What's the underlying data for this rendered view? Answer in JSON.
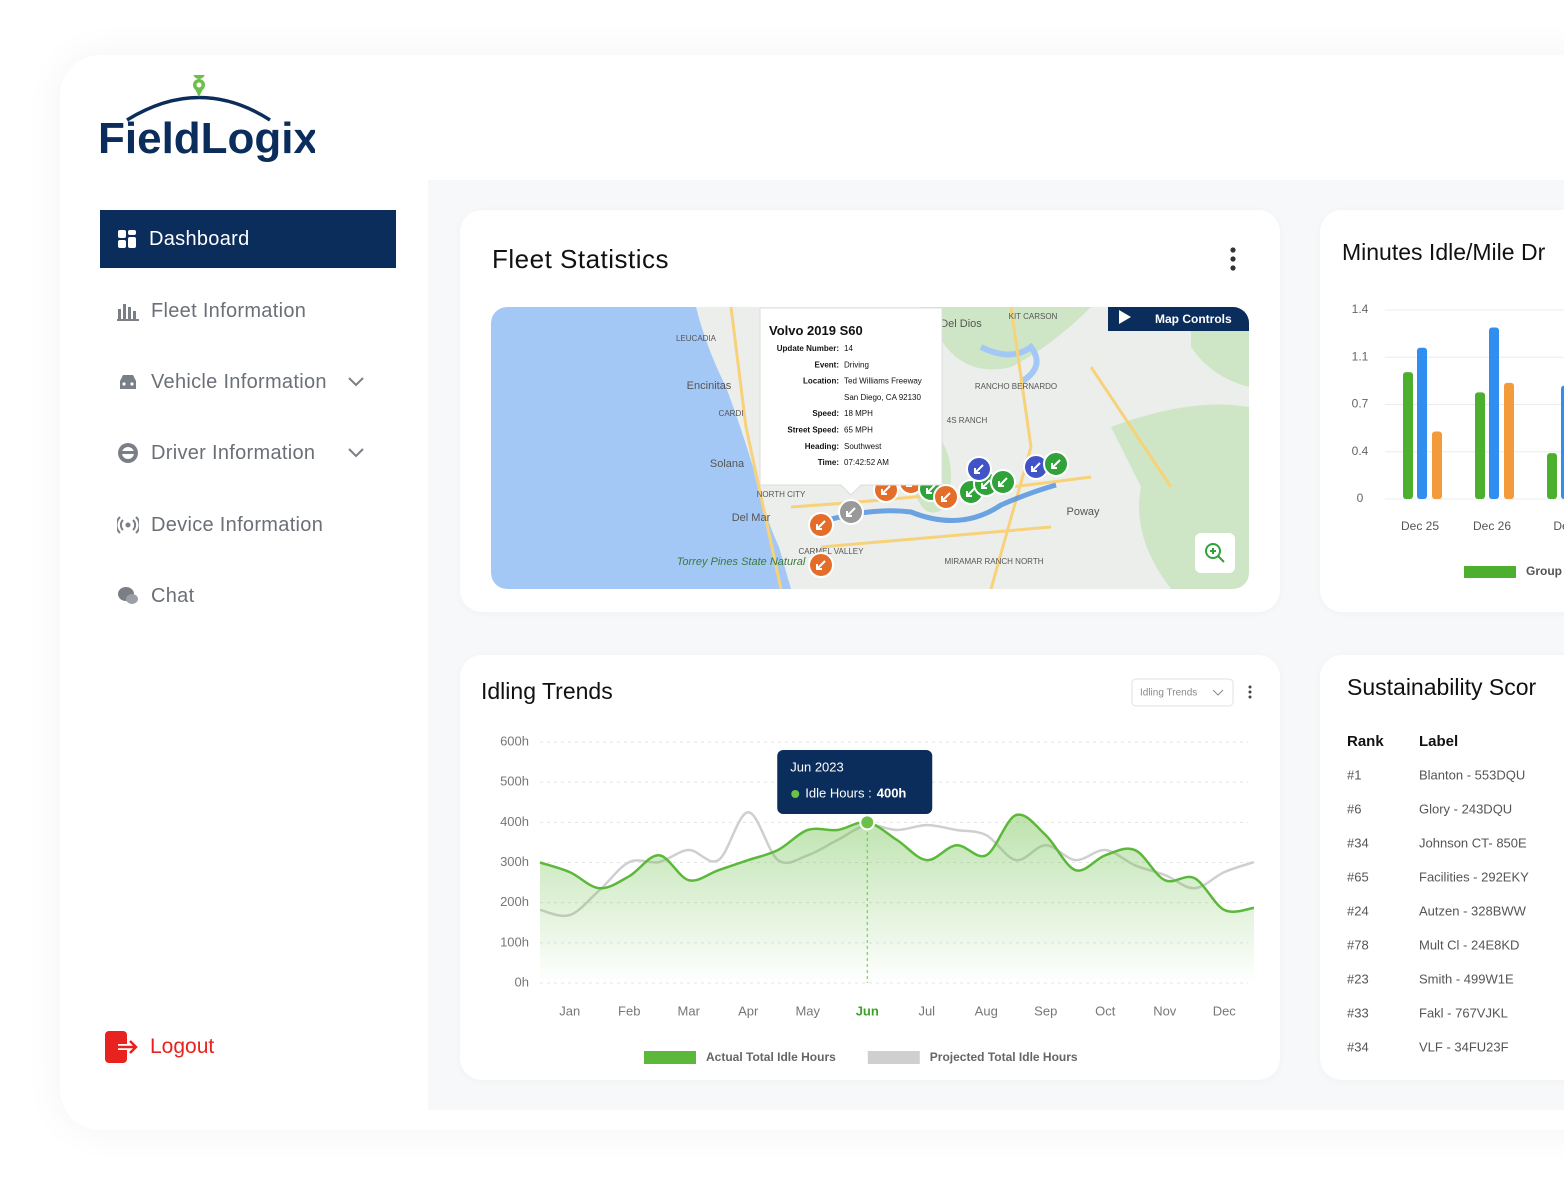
{
  "brand": "FieldLogix",
  "nav": {
    "items": [
      "Dashboard",
      "Fleet Information",
      "Vehicle Information",
      "Driver Information",
      "Device Information",
      "Chat"
    ],
    "logout": "Logout"
  },
  "fleet_statistics": {
    "title": "Fleet Statistics",
    "map_controls": "Map Controls",
    "popup": {
      "vehicle": "Volvo 2019 S60",
      "fields": [
        {
          "label": "Update Number:",
          "lines": [
            "14"
          ]
        },
        {
          "label": "Event:",
          "lines": [
            "Driving"
          ]
        },
        {
          "label": "Location:",
          "lines": [
            "Ted Williams Freeway",
            "San Diego, CA 92130"
          ]
        },
        {
          "label": "Speed:",
          "lines": [
            "18 MPH"
          ]
        },
        {
          "label": "Street Speed:",
          "lines": [
            "65 MPH"
          ]
        },
        {
          "label": "Heading:",
          "lines": [
            "Southwest"
          ]
        },
        {
          "label": "Time:",
          "lines": [
            "07:42:52 AM"
          ]
        }
      ]
    },
    "map_labels": [
      "LEUCADIA",
      "Encinitas",
      "CARDI",
      "Solana",
      "Del Mar",
      "NORTH CITY",
      "Del Dios",
      "KIT CARSON",
      "RANCHO BERNARDO",
      "4S RANCH",
      "Poway",
      "MIRAMAR RANCH NORTH",
      "CARMEL VALLEY",
      "Torrey Pines State Natural"
    ]
  },
  "chart_data": [
    {
      "type": "bar",
      "title": "Minutes Idle/Mile Dr",
      "categories": [
        "Dec 25",
        "Dec 26",
        "Dec"
      ],
      "series": [
        {
          "name": "Group",
          "color": "#4caf2e",
          "values": [
            0.94,
            0.79,
            0.34
          ]
        },
        {
          "color": "#2f8ef0",
          "values": [
            1.12,
            1.27,
            0.84
          ]
        },
        {
          "color": "#f39a3a",
          "values": [
            0.5,
            0.86,
            null
          ]
        }
      ],
      "ylim": [
        0,
        1.4
      ],
      "yticks": [
        0,
        {
          "value": 0.35,
          "label": "0.4"
        },
        0.7,
        {
          "value": 1.05,
          "label": "1.1"
        },
        1.4
      ],
      "grid": true
    },
    {
      "type": "line",
      "title": "Idling Trends",
      "dropdown": "Idling Trends",
      "categories": [
        null,
        "Jan",
        null,
        "Feb",
        null,
        "Mar",
        null,
        "Apr",
        null,
        "May",
        null,
        "Jun",
        null,
        "Jul",
        null,
        "Aug",
        null,
        "Sep",
        null,
        "Oct",
        null,
        "Nov",
        null,
        "Dec",
        null
      ],
      "series": [
        {
          "name": "Actual Total Idle Hours",
          "color": "#5cb83a",
          "values": [
            300,
            276,
            236,
            266,
            318,
            256,
            281,
            306,
            331,
            381,
            381,
            400,
            356,
            306,
            343,
            318,
            418,
            368,
            281,
            318,
            331,
            256,
            261,
            182,
            187
          ]
        },
        {
          "name": "Projected Total Idle Hours",
          "color": "#cfcfcf",
          "values": [
            182,
            169,
            231,
            301,
            301,
            331,
            306,
            425,
            306,
            318,
            356,
            393,
            381,
            393,
            381,
            368,
            306,
            343,
            306,
            331,
            293,
            269,
            236,
            276,
            301
          ]
        }
      ],
      "ylim": [
        0,
        600
      ],
      "yticks": [
        {
          "value": 0,
          "label": "0h"
        },
        {
          "value": 100,
          "label": "100h"
        },
        {
          "value": 200,
          "label": "200h"
        },
        {
          "value": 300,
          "label": "300h"
        },
        {
          "value": 400,
          "label": "400h"
        },
        {
          "value": 500,
          "label": "500h"
        },
        {
          "value": 600,
          "label": "600h"
        }
      ],
      "grid": true,
      "tooltip": {
        "index": 11,
        "title": "Jun 2023",
        "label": "Idle Hours :",
        "value_label": "400h"
      }
    }
  ],
  "sustainability": {
    "title": "Sustainability Scor",
    "headers": [
      "Rank",
      "Label"
    ],
    "rows": [
      [
        "#1",
        "Blanton - 553DQU"
      ],
      [
        "#6",
        "Glory - 243DQU"
      ],
      [
        "#34",
        "Johnson CT- 850E"
      ],
      [
        "#65",
        "Facilities - 292EKY"
      ],
      [
        "#24",
        "Autzen - 328BWW"
      ],
      [
        "#78",
        "Mult Cl - 24E8KD"
      ],
      [
        "#23",
        "Smith - 499W1E"
      ],
      [
        "#33",
        "Fakl - 767VJKL"
      ],
      [
        "#34",
        "VLF - 34FU23F"
      ]
    ]
  }
}
